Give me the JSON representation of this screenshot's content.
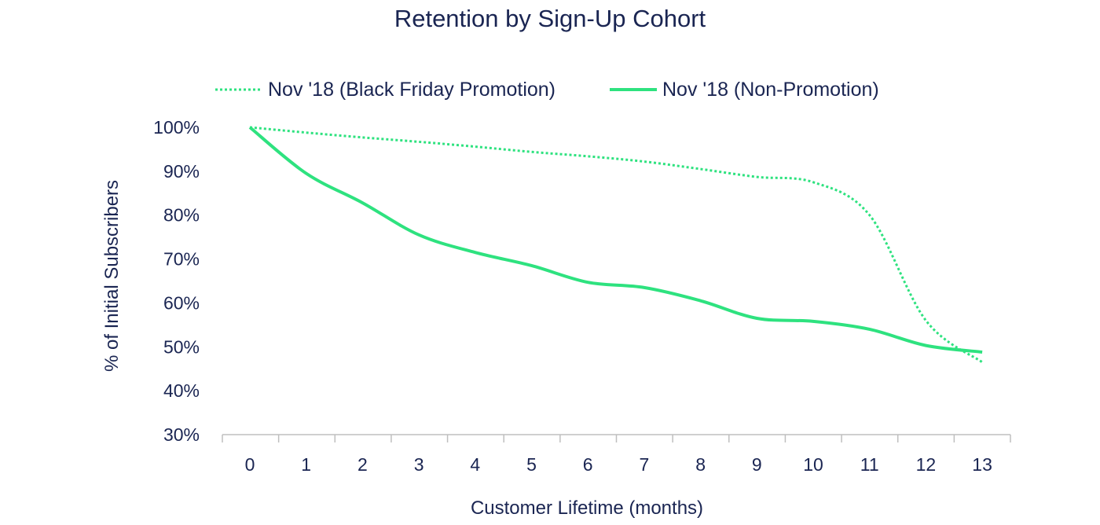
{
  "chart_data": {
    "type": "line",
    "title": "Retention by Sign-Up Cohort",
    "xlabel": "Customer Lifetime (months)",
    "ylabel": "% of Initial Subscribers",
    "x": [
      0,
      1,
      2,
      3,
      4,
      5,
      6,
      7,
      8,
      9,
      10,
      11,
      12,
      13
    ],
    "x_tick_labels": [
      "0",
      "1",
      "2",
      "3",
      "4",
      "5",
      "6",
      "7",
      "8",
      "9",
      "10",
      "11",
      "12",
      "13"
    ],
    "ylim": [
      30,
      100
    ],
    "y_ticks": [
      100,
      90,
      80,
      70,
      60,
      50,
      40,
      30
    ],
    "y_tick_labels": [
      "100%",
      "90%",
      "80%",
      "70%",
      "60%",
      "50%",
      "40%",
      "30%"
    ],
    "grid": false,
    "legend_position": "top",
    "color": "#2ee27f",
    "series": [
      {
        "name": "Nov '18 (Black Friday Promotion)",
        "style": "dotted",
        "values": [
          100,
          98.8,
          97.7,
          96.7,
          95.6,
          94.4,
          93.4,
          92.2,
          90.5,
          88.7,
          87.5,
          80,
          56,
          46.5
        ]
      },
      {
        "name": "Nov '18 (Non-Promotion)",
        "style": "solid",
        "values": [
          100,
          89.5,
          82.8,
          75.5,
          71.5,
          68.5,
          64.7,
          63.5,
          60.5,
          56.5,
          55.8,
          54,
          50.3,
          48.8
        ]
      }
    ]
  }
}
